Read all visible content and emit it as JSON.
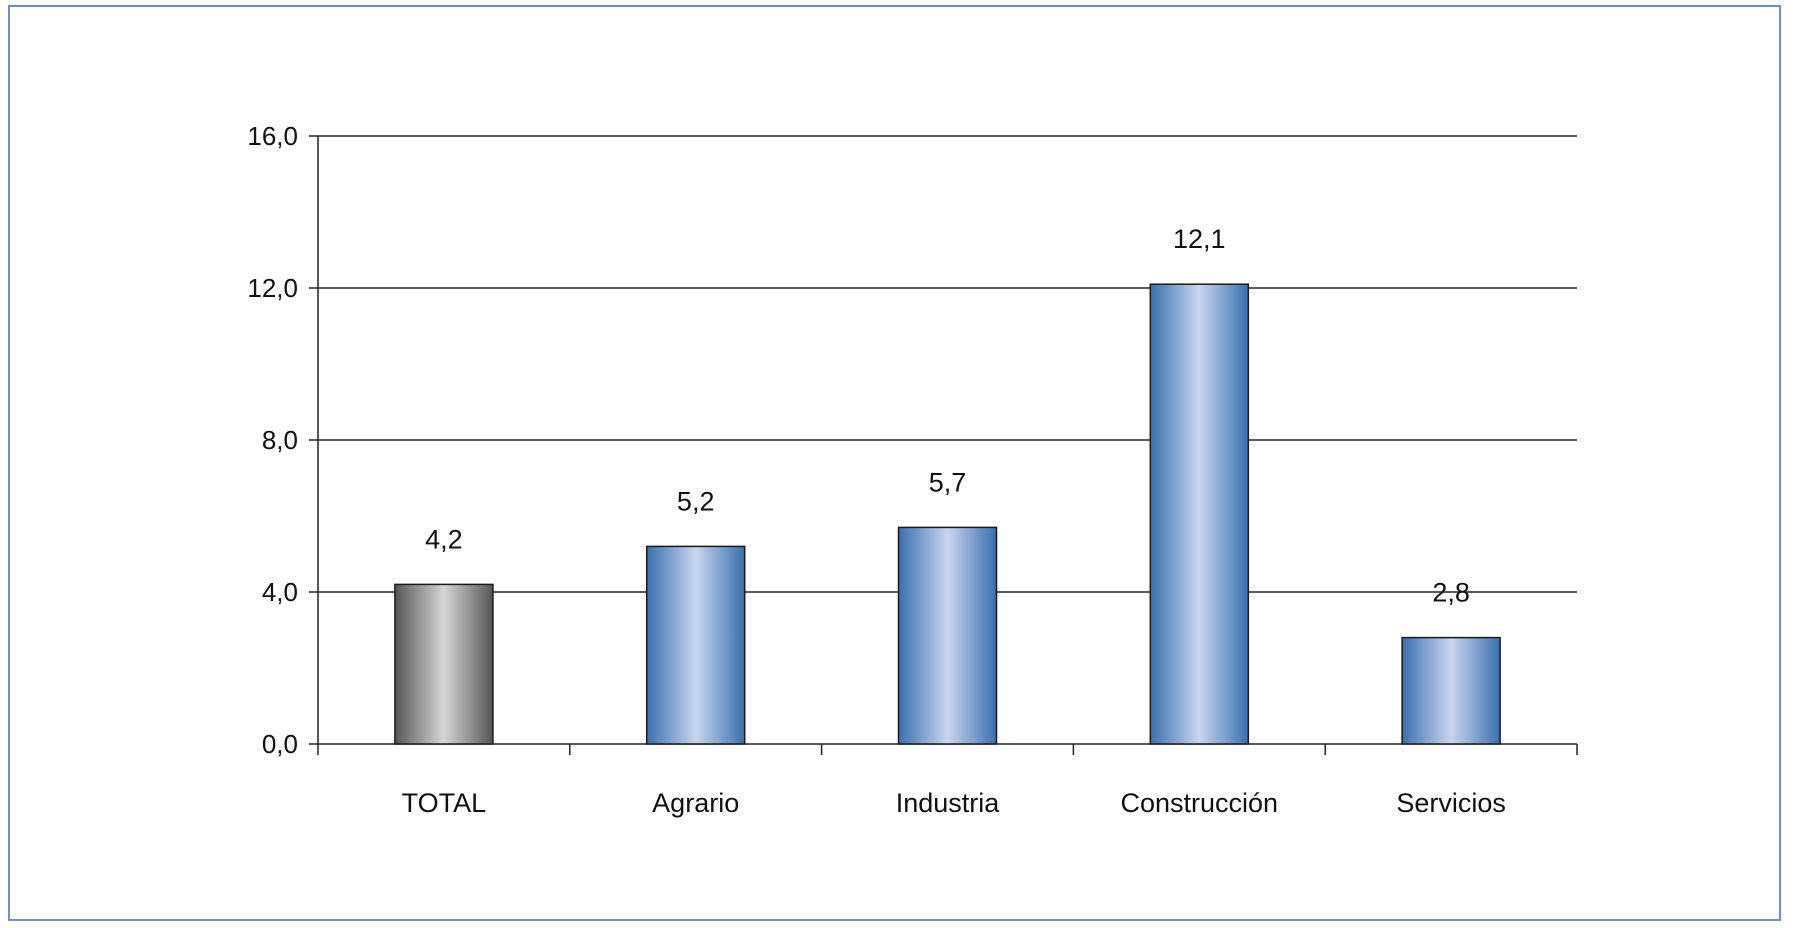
{
  "chart_data": {
    "type": "bar",
    "title": "",
    "xlabel": "",
    "ylabel": "",
    "categories": [
      "TOTAL",
      "Agrario",
      "Industria",
      "Construcción",
      "Servicios"
    ],
    "values": [
      4.2,
      5.2,
      5.7,
      12.1,
      2.8
    ],
    "value_labels": [
      "4,2",
      "5,2",
      "5,7",
      "12,1",
      "2,8"
    ],
    "ylim": [
      0,
      16
    ],
    "yticks": [
      0,
      4,
      8,
      12,
      16
    ],
    "ytick_labels": [
      "0,0",
      "4,0",
      "8,0",
      "12,0",
      "16,0"
    ],
    "grid": true,
    "legend": "none",
    "bar_colors": [
      "gray",
      "blue",
      "blue",
      "blue",
      "blue"
    ]
  },
  "colors": {
    "frame_border": "#6f8fc4",
    "gridline": "#222222",
    "blue_dark": "#3a6fae",
    "blue_light": "#c8d6ee",
    "gray_dark": "#555555",
    "gray_light": "#d6d6d6",
    "bar_outline": "#1a1a1a"
  }
}
